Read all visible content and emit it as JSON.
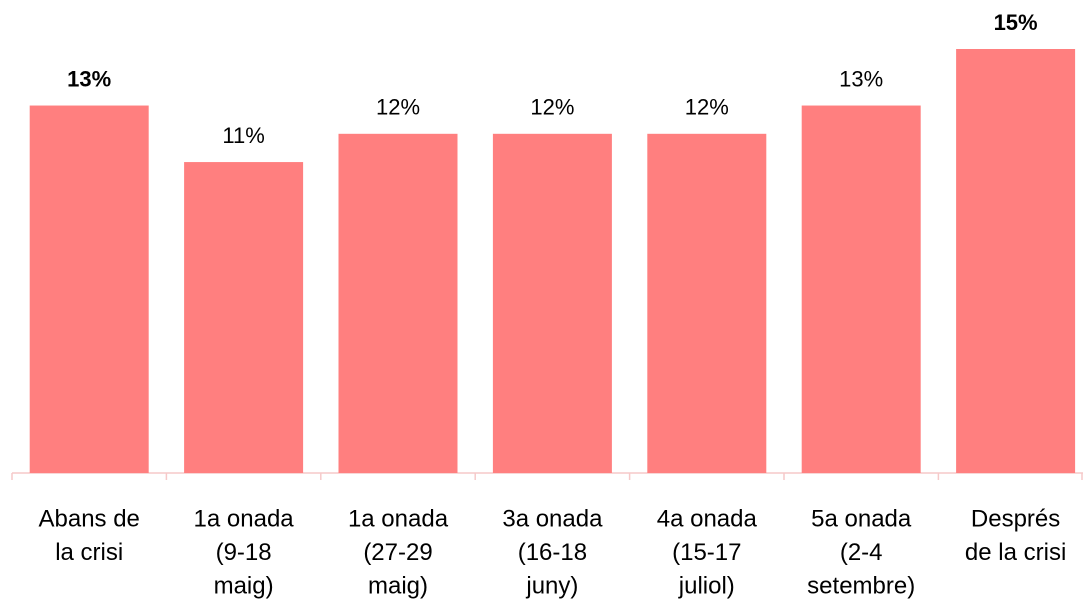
{
  "chart_data": {
    "type": "bar",
    "categories": [
      [
        "Abans de",
        "la crisi"
      ],
      [
        "1a onada",
        "(9-18",
        "maig)"
      ],
      [
        "1a onada",
        "(27-29",
        "maig)"
      ],
      [
        "3a onada",
        "(16-18",
        "juny)"
      ],
      [
        "4a onada",
        "(15-17",
        "juliol)"
      ],
      [
        "5a onada",
        "(2-4",
        "setembre)"
      ],
      [
        "Després",
        "de la crisi"
      ]
    ],
    "values": [
      13,
      11,
      12,
      12,
      12,
      13,
      15
    ],
    "value_labels": [
      "13%",
      "11%",
      "12%",
      "12%",
      "12%",
      "13%",
      "15%"
    ],
    "bold_labels": [
      true,
      false,
      false,
      false,
      false,
      false,
      true
    ],
    "color": "#ff7f7f",
    "ylim": [
      0,
      15
    ]
  }
}
